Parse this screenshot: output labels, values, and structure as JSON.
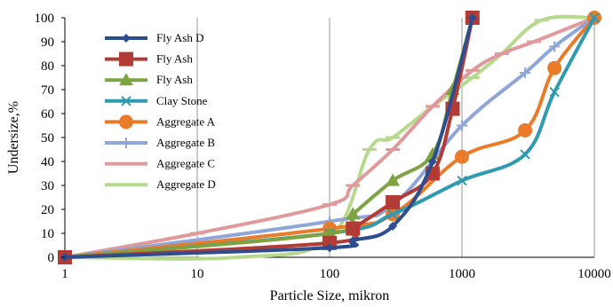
{
  "chart_data": {
    "type": "line",
    "xscale": "log",
    "xlim": [
      1,
      10000
    ],
    "ylim": [
      0,
      100
    ],
    "grid": {
      "x": true,
      "y": false
    },
    "xlabel": "Particle Size, mikron",
    "ylabel": "Undersize,%",
    "x_ticks": [
      "1",
      "10",
      "100",
      "1000",
      "10000"
    ],
    "y_ticks": [
      "0",
      "10",
      "20",
      "30",
      "40",
      "50",
      "60",
      "70",
      "80",
      "90",
      "100"
    ],
    "legend_position": "top-left",
    "series": [
      {
        "name": "Fly Ash D",
        "color": "#2e4d8f",
        "marker": "diamond",
        "x": [
          1,
          100,
          150,
          300,
          600,
          1200
        ],
        "y": [
          0,
          4,
          7,
          13,
          40,
          100
        ]
      },
      {
        "name": "Fly Ash",
        "color": "#b23b36",
        "marker": "square",
        "x": [
          1,
          100,
          150,
          300,
          600,
          850,
          1200
        ],
        "y": [
          0,
          6,
          12,
          23,
          35,
          62,
          100
        ]
      },
      {
        "name": "Fly Ash",
        "color": "#7da342",
        "marker": "triangle",
        "x": [
          1,
          100,
          150,
          300,
          600,
          850,
          1200
        ],
        "y": [
          0,
          10,
          18,
          32,
          43,
          70,
          100
        ]
      },
      {
        "name": "Clay Stone",
        "color": "#2f9ab0",
        "marker": "x",
        "x": [
          1,
          100,
          300,
          1000,
          3000,
          5000,
          10000
        ],
        "y": [
          0,
          10,
          18,
          32,
          43,
          69,
          100
        ]
      },
      {
        "name": "Aggregate A",
        "color": "#ea7b2a",
        "marker": "circle",
        "x": [
          1,
          100,
          300,
          1000,
          3000,
          5000,
          10000
        ],
        "y": [
          0,
          12,
          18,
          42,
          53,
          79,
          100
        ]
      },
      {
        "name": "Aggregate B",
        "color": "#8ea6d8",
        "marker": "plus",
        "x": [
          1,
          100,
          300,
          1000,
          3000,
          5000,
          10000
        ],
        "y": [
          0,
          15,
          22,
          55,
          77,
          88,
          100
        ]
      },
      {
        "name": "Aggregate C",
        "color": "#e09a9c",
        "marker": "dash",
        "x": [
          1,
          10,
          100,
          150,
          300,
          600,
          1200,
          2000,
          3500,
          10000
        ],
        "y": [
          0,
          10,
          22,
          30,
          45,
          63,
          78,
          85,
          90,
          100
        ]
      },
      {
        "name": "Aggregate D",
        "color": "#b7d98e",
        "marker": "dash",
        "x": [
          1,
          20,
          100,
          200,
          300,
          600,
          1200,
          2000,
          4000,
          10000
        ],
        "y": [
          0,
          0,
          8,
          45,
          50,
          63,
          75,
          85,
          99,
          100
        ]
      }
    ]
  }
}
